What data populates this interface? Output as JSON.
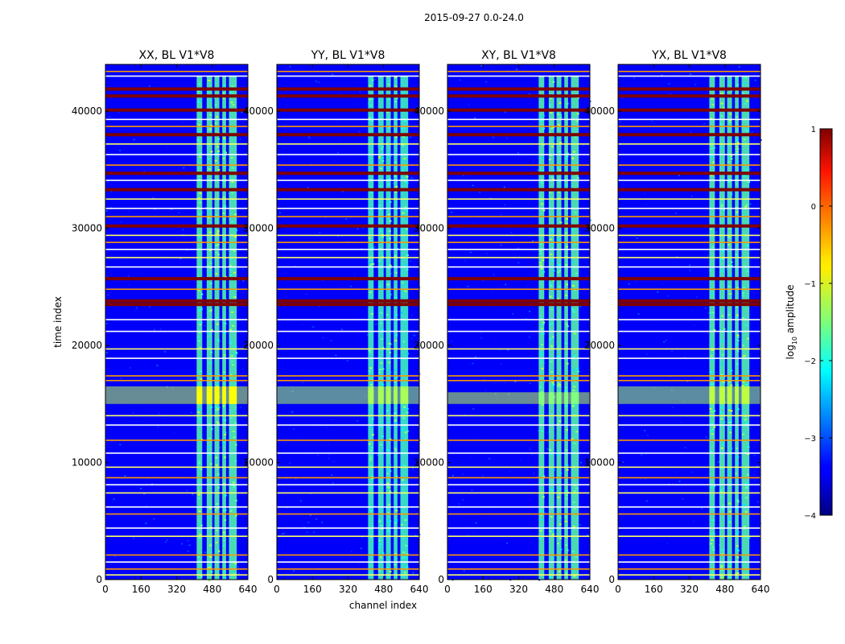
{
  "figure": {
    "suptitle": "2015-09-27 0.0-24.0",
    "colormap": "jet"
  },
  "chart_data": [
    {
      "type": "heatmap",
      "title": "XX, BL V1*V8",
      "xlabel": "channel index",
      "ylabel": "time index",
      "xlim": [
        0,
        640
      ],
      "ylim": [
        0,
        44000
      ],
      "xticks": [
        0,
        160,
        320,
        480,
        640
      ],
      "yticks": [
        0,
        10000,
        20000,
        30000,
        40000
      ],
      "value_label": "log10 amplitude",
      "background_log10": -3.4,
      "band_channels": [
        [
          410,
          435
        ],
        [
          455,
          480
        ],
        [
          490,
          512
        ],
        [
          525,
          542
        ],
        [
          555,
          590
        ]
      ],
      "band_log10": -1.7,
      "band_time_range": [
        0,
        43000
      ],
      "bright_time_range": [
        15000,
        16500
      ],
      "bright_log10": -0.9,
      "horizontal_stripe_log10": -1.2,
      "flagged_rows_log10": 0.8
    },
    {
      "type": "heatmap",
      "title": "YY, BL V1*V8",
      "xlabel": "channel index",
      "ylabel": "",
      "xlim": [
        0,
        640
      ],
      "ylim": [
        0,
        44000
      ],
      "xticks": [
        0,
        160,
        320,
        480,
        640
      ],
      "yticks": [
        0,
        10000,
        20000,
        30000,
        40000
      ],
      "value_label": "log10 amplitude",
      "background_log10": -3.4,
      "band_channels": [
        [
          410,
          435
        ],
        [
          455,
          480
        ],
        [
          490,
          512
        ],
        [
          525,
          542
        ],
        [
          555,
          590
        ]
      ],
      "band_log10": -1.8,
      "band_time_range": [
        0,
        43000
      ],
      "bright_time_range": [
        15000,
        16500
      ],
      "bright_log10": -1.3,
      "horizontal_stripe_log10": -1.3,
      "flagged_rows_log10": 0.8
    },
    {
      "type": "heatmap",
      "title": "XY, BL V1*V8",
      "xlabel": "channel index",
      "ylabel": "",
      "xlim": [
        0,
        640
      ],
      "ylim": [
        0,
        44000
      ],
      "xticks": [
        0,
        160,
        320,
        480,
        640
      ],
      "yticks": [
        0,
        10000,
        20000,
        30000,
        40000
      ],
      "value_label": "log10 amplitude",
      "background_log10": -3.4,
      "band_channels": [
        [
          410,
          435
        ],
        [
          455,
          480
        ],
        [
          490,
          512
        ],
        [
          525,
          542
        ],
        [
          555,
          590
        ]
      ],
      "band_log10": -1.7,
      "band_time_range": [
        0,
        43000
      ],
      "bright_time_range": [
        15000,
        16000
      ],
      "bright_log10": -1.5,
      "horizontal_stripe_log10": -1.2,
      "flagged_rows_log10": 0.8
    },
    {
      "type": "heatmap",
      "title": "YX, BL V1*V8",
      "xlabel": "channel index",
      "ylabel": "",
      "xlim": [
        0,
        640
      ],
      "ylim": [
        0,
        44000
      ],
      "xticks": [
        0,
        160,
        320,
        480,
        640
      ],
      "yticks": [
        0,
        10000,
        20000,
        30000,
        40000
      ],
      "value_label": "log10 amplitude",
      "background_log10": -3.4,
      "band_channels": [
        [
          410,
          435
        ],
        [
          455,
          480
        ],
        [
          490,
          512
        ],
        [
          525,
          542
        ],
        [
          555,
          590
        ]
      ],
      "band_log10": -1.7,
      "band_time_range": [
        0,
        43000
      ],
      "bright_time_range": [
        15000,
        16500
      ],
      "bright_log10": -1.2,
      "horizontal_stripe_log10": -1.3,
      "flagged_rows_log10": 0.8
    }
  ],
  "colorbar": {
    "label": "log",
    "label_sub": "10",
    "label_suffix": " amplitude",
    "range": [
      -4,
      1
    ],
    "ticks": [
      {
        "value": 1,
        "text": "1"
      },
      {
        "value": 0,
        "text": "0"
      },
      {
        "value": -1,
        "text": "−1"
      },
      {
        "value": -2,
        "text": "−2"
      },
      {
        "value": -3,
        "text": "−3"
      },
      {
        "value": -4,
        "text": "−4"
      }
    ]
  },
  "horizontal_lines": [
    {
      "t": 400,
      "c": "yellow"
    },
    {
      "t": 900,
      "c": "orange"
    },
    {
      "t": 1500,
      "c": "white"
    },
    {
      "t": 2100,
      "c": "orange"
    },
    {
      "t": 3700,
      "c": "yellow"
    },
    {
      "t": 4400,
      "c": "white"
    },
    {
      "t": 5600,
      "c": "orange"
    },
    {
      "t": 6200,
      "c": "white"
    },
    {
      "t": 7400,
      "c": "yellow"
    },
    {
      "t": 8100,
      "c": "white"
    },
    {
      "t": 8700,
      "c": "orange"
    },
    {
      "t": 9600,
      "c": "yellow"
    },
    {
      "t": 10800,
      "c": "white"
    },
    {
      "t": 11900,
      "c": "orange"
    },
    {
      "t": 13200,
      "c": "white"
    },
    {
      "t": 14000,
      "c": "yellow"
    },
    {
      "t": 17000,
      "c": "orange"
    },
    {
      "t": 17400,
      "c": "orange"
    },
    {
      "t": 18900,
      "c": "white"
    },
    {
      "t": 19700,
      "c": "yellow"
    },
    {
      "t": 21200,
      "c": "white"
    },
    {
      "t": 22200,
      "c": "white"
    },
    {
      "t": 23500,
      "c": "darkred"
    },
    {
      "t": 23800,
      "c": "darkred"
    },
    {
      "t": 24800,
      "c": "orange"
    },
    {
      "t": 25700,
      "c": "darkred"
    },
    {
      "t": 26700,
      "c": "white"
    },
    {
      "t": 27500,
      "c": "yellow"
    },
    {
      "t": 28200,
      "c": "white"
    },
    {
      "t": 28800,
      "c": "orange"
    },
    {
      "t": 29400,
      "c": "yellow"
    },
    {
      "t": 30200,
      "c": "darkred"
    },
    {
      "t": 31000,
      "c": "orange"
    },
    {
      "t": 31700,
      "c": "white"
    },
    {
      "t": 32500,
      "c": "yellow"
    },
    {
      "t": 33300,
      "c": "darkred"
    },
    {
      "t": 34100,
      "c": "white"
    },
    {
      "t": 34700,
      "c": "darkred"
    },
    {
      "t": 35400,
      "c": "orange"
    },
    {
      "t": 36300,
      "c": "white"
    },
    {
      "t": 37200,
      "c": "yellow"
    },
    {
      "t": 38000,
      "c": "darkred"
    },
    {
      "t": 38700,
      "c": "orange"
    },
    {
      "t": 39300,
      "c": "white"
    },
    {
      "t": 40100,
      "c": "darkred"
    },
    {
      "t": 41300,
      "c": "darkred"
    },
    {
      "t": 41900,
      "c": "darkred"
    },
    {
      "t": 43000,
      "c": "white"
    },
    {
      "t": 43400,
      "c": "orange"
    }
  ],
  "palette": {
    "white": "#ffffff",
    "yellow": "#ffff66",
    "orange": "#ff9900",
    "darkred": "#7f0000"
  }
}
